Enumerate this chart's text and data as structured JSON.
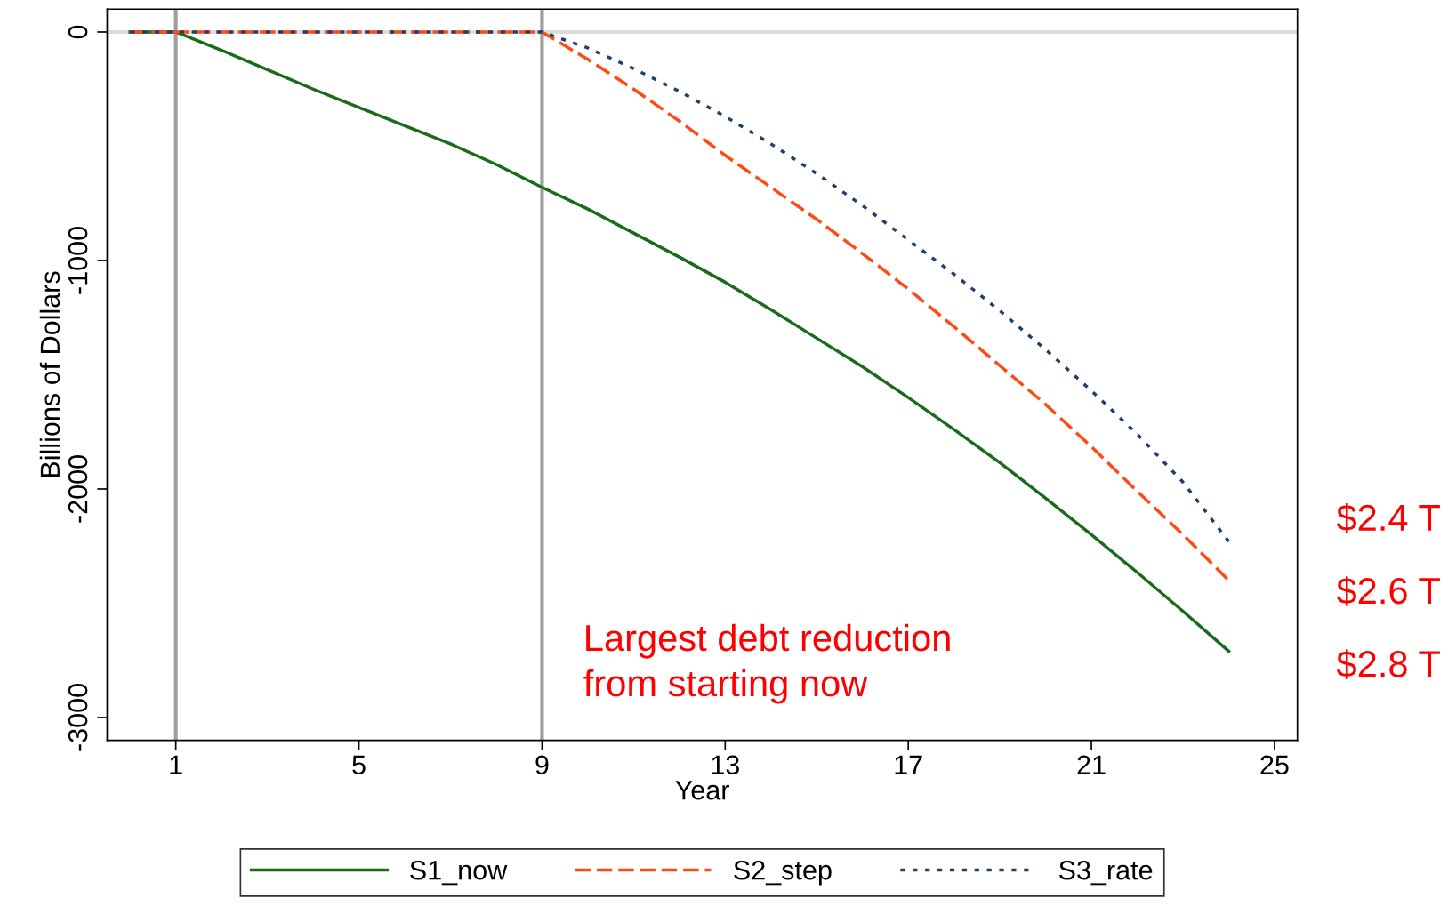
{
  "chart_data": {
    "type": "line",
    "xlabel": "Year",
    "ylabel": "Billions of Dollars",
    "x": [
      0,
      1,
      2,
      3,
      4,
      5,
      6,
      7,
      8,
      9,
      10,
      11,
      12,
      13,
      14,
      15,
      16,
      17,
      18,
      19,
      20,
      21,
      22,
      23,
      24
    ],
    "series": [
      {
        "name": "S1_now",
        "color": "#1a6b1a",
        "line_style": "solid",
        "values": [
          0,
          0,
          -80,
          -165,
          -250,
          -330,
          -410,
          -490,
          -580,
          -680,
          -775,
          -880,
          -985,
          -1095,
          -1215,
          -1340,
          -1465,
          -1600,
          -1740,
          -1885,
          -2040,
          -2200,
          -2365,
          -2535,
          -2710
        ]
      },
      {
        "name": "S2_step",
        "color": "#ff4a14",
        "line_style": "dashed",
        "values": [
          0,
          0,
          0,
          0,
          0,
          0,
          0,
          0,
          0,
          0,
          -120,
          -250,
          -390,
          -540,
          -680,
          -820,
          -970,
          -1125,
          -1290,
          -1460,
          -1630,
          -1815,
          -2010,
          -2200,
          -2400
        ]
      },
      {
        "name": "S3_rate",
        "color": "#1f3f6e",
        "line_style": "dotted",
        "values": [
          0,
          0,
          0,
          0,
          0,
          0,
          0,
          0,
          0,
          0,
          -70,
          -160,
          -260,
          -370,
          -490,
          -620,
          -760,
          -910,
          -1060,
          -1220,
          -1390,
          -1570,
          -1760,
          -1970,
          -2230
        ]
      }
    ],
    "xlim": [
      -0.5,
      25.5
    ],
    "ylim": [
      -3100,
      100
    ],
    "xticks": [
      1,
      5,
      9,
      13,
      17,
      21,
      25
    ],
    "yticks": [
      -3000,
      -2000,
      -1000,
      0
    ],
    "ref_lines": [
      {
        "axis": "y",
        "value": 0,
        "color": "#dcdcdc"
      },
      {
        "axis": "x",
        "value": 1,
        "color": "#a0a0a0"
      },
      {
        "axis": "x",
        "value": 9,
        "color": "#a0a0a0"
      }
    ],
    "annotations": [
      "Largest debt reduction\nfrom starting now",
      "$2.4 T",
      "$2.6 T",
      "$2.8 T"
    ],
    "grid": false,
    "legend": "bottom",
    "marker": "none"
  }
}
